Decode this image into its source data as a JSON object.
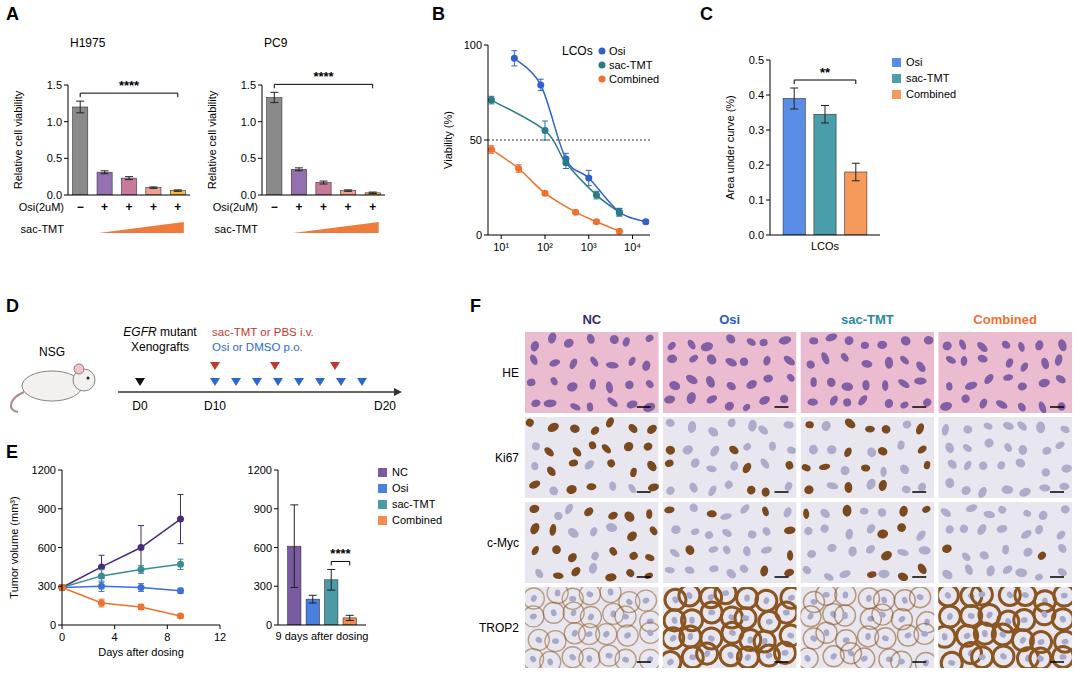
{
  "panel_letters": [
    "A",
    "B",
    "C",
    "D",
    "E",
    "F"
  ],
  "chart_data": [
    {
      "type": "bar",
      "title": "H1975",
      "ylabel": "Relative cell viability",
      "categories": [
        null,
        null,
        null,
        null,
        null
      ],
      "values": [
        1.2,
        0.31,
        0.23,
        0.1,
        0.06
      ],
      "errors": [
        0.08,
        0.02,
        0.02,
        0.01,
        0.01
      ],
      "colors": [
        "#8a8a8a",
        "#9470b0",
        "#c87a9c",
        "#f0a08e",
        "#f5b942"
      ],
      "ylim": [
        0,
        1.5
      ],
      "yticks": [
        {
          "value": 0,
          "label": "0.0"
        },
        {
          "value": 0.5,
          "label": "0.5"
        },
        {
          "value": 1,
          "label": "1.0"
        },
        {
          "value": 1.5,
          "label": "1.5"
        }
      ],
      "annotations": [
        "****"
      ],
      "x_rows": [
        {
          "label": "Osi(2uM)",
          "marks": [
            "−",
            "+",
            "+",
            "+",
            "+"
          ]
        },
        {
          "label": "sac-TMT"
        }
      ]
    },
    {
      "type": "bar",
      "title": "PC9",
      "ylabel": "Relative cell viability",
      "categories": [
        null,
        null,
        null,
        null,
        null
      ],
      "values": [
        1.33,
        0.35,
        0.17,
        0.06,
        0.03
      ],
      "errors": [
        0.07,
        0.02,
        0.02,
        0.01,
        0.01
      ],
      "colors": [
        "#8a8a8a",
        "#9470b0",
        "#c87a9c",
        "#f0a08e",
        "#f5b942"
      ],
      "ylim": [
        0,
        1.5
      ],
      "yticks": [
        {
          "value": 0,
          "label": "0.0"
        },
        {
          "value": 0.5,
          "label": "0.5"
        },
        {
          "value": 1,
          "label": "1.0"
        },
        {
          "value": 1.5,
          "label": "1.5"
        }
      ],
      "annotations": [
        "****"
      ],
      "x_rows": [
        {
          "label": "Osi(2uM)",
          "marks": [
            "−",
            "+",
            "+",
            "+",
            "+"
          ]
        },
        {
          "label": "sac-TMT"
        }
      ]
    },
    {
      "type": "line",
      "title": "LCOs",
      "ylabel": "Viability (%)",
      "log": "x",
      "marker": "circle",
      "xlim": [
        5,
        25000
      ],
      "xticks": [
        {
          "value": 10,
          "label": "10¹"
        },
        {
          "value": 100,
          "label": "10²"
        },
        {
          "value": 1000,
          "label": "10³"
        },
        {
          "value": 10000,
          "label": "10⁴"
        }
      ],
      "ylim": [
        0,
        100
      ],
      "yticks": [
        0,
        50,
        100
      ],
      "reference_line": 50,
      "legend": "top-right",
      "series": [
        {
          "name": "Osi",
          "color": "#3060d0",
          "x": [
            20,
            80,
            300,
            1000,
            5000,
            20000
          ],
          "values": [
            93,
            79,
            40,
            30,
            12,
            7
          ],
          "errors": [
            4,
            3,
            3,
            4,
            2,
            1
          ]
        },
        {
          "name": "sac-TMT",
          "color": "#2a7a8a",
          "x": [
            6,
            100,
            300,
            1500,
            5000
          ],
          "values": [
            71,
            55,
            38,
            21,
            12
          ],
          "errors": [
            2,
            5,
            3,
            2,
            2
          ]
        },
        {
          "name": "Combined",
          "color": "#f07030",
          "x": [
            6,
            25,
            100,
            500,
            1500,
            5000
          ],
          "values": [
            45,
            35,
            22,
            12,
            7,
            2
          ],
          "errors": [
            2,
            2,
            1,
            1,
            1,
            1
          ]
        }
      ]
    },
    {
      "type": "bar",
      "ylabel": "Area under curve (%)",
      "categories": [
        "LCOs"
      ],
      "series": [
        {
          "name": "Osi",
          "color": "#5a8ee6",
          "values": [
            0.39
          ],
          "errors": [
            0.03
          ]
        },
        {
          "name": "sac-TMT",
          "color": "#4a9eaa",
          "values": [
            0.345
          ],
          "errors": [
            0.025
          ]
        },
        {
          "name": "Combined",
          "color": "#f59a5a",
          "values": [
            0.18
          ],
          "errors": [
            0.025
          ]
        }
      ],
      "ylim": [
        0,
        0.5
      ],
      "yticks": [
        {
          "value": 0,
          "label": "0.0"
        },
        {
          "value": 0.1,
          "label": "0.1"
        },
        {
          "value": 0.2,
          "label": "0.2"
        },
        {
          "value": 0.3,
          "label": "0.3"
        },
        {
          "value": 0.4,
          "label": "0.4"
        },
        {
          "value": 0.5,
          "label": "0.5"
        }
      ],
      "legend": "right",
      "annotations": [
        "**"
      ]
    },
    {
      "type": "line",
      "xlabel": "Days after dosing",
      "ylabel": "Tumor volume (mm³)",
      "marker": "circle",
      "x": [
        0,
        3,
        6,
        9
      ],
      "xlim": [
        0,
        12
      ],
      "xticks": [
        0,
        4,
        8,
        12
      ],
      "ylim": [
        0,
        1200
      ],
      "yticks": [
        0,
        300,
        600,
        900,
        1200
      ],
      "series": [
        {
          "name": "NC",
          "color": "#4a2a7a",
          "values": [
            290,
            450,
            600,
            820
          ],
          "errors": [
            20,
            90,
            170,
            190
          ]
        },
        {
          "name": "Osi",
          "color": "#3a70d8",
          "values": [
            290,
            300,
            290,
            265
          ],
          "errors": [
            20,
            40,
            30,
            20
          ]
        },
        {
          "name": "sac-TMT",
          "color": "#3a8a98",
          "values": [
            290,
            380,
            430,
            470
          ],
          "errors": [
            20,
            50,
            30,
            40
          ]
        },
        {
          "name": "Combined",
          "color": "#f07030",
          "values": [
            290,
            170,
            140,
            70
          ],
          "errors": [
            20,
            30,
            20,
            15
          ]
        }
      ]
    },
    {
      "type": "bar",
      "categories": [
        "9 days after dosing"
      ],
      "series": [
        {
          "name": "NC",
          "color": "#7a5aa0",
          "values": [
            610
          ],
          "errors": [
            320
          ]
        },
        {
          "name": "Osi",
          "color": "#4a80e0",
          "values": [
            200
          ],
          "errors": [
            30
          ]
        },
        {
          "name": "sac-TMT",
          "color": "#4a9aa8",
          "values": [
            350
          ],
          "errors": [
            80
          ]
        },
        {
          "name": "Combined",
          "color": "#f58a50",
          "values": [
            55
          ],
          "errors": [
            20
          ]
        }
      ],
      "ylim": [
        0,
        1200
      ],
      "yticks": [
        0,
        300,
        600,
        900,
        1200
      ],
      "legend": "right",
      "annotations": [
        "****"
      ]
    }
  ],
  "schematic": {
    "host": "NSG",
    "model": "EGFR mutant",
    "model_sub": "Xenografts",
    "iv_label": "sac-TMT or PBS i.v.",
    "po_label": "Osi or DMSO p.o.",
    "timeline": [
      "D0",
      "D10",
      "D20"
    ]
  },
  "image_grid": {
    "columns": [
      {
        "label": "NC",
        "color": "#3a2a6a"
      },
      {
        "label": "Osi",
        "color": "#2a5ad0"
      },
      {
        "label": "sac-TMT",
        "color": "#2a8aa0"
      },
      {
        "label": "Combined",
        "color": "#f07030"
      }
    ],
    "rows": [
      "HE",
      "Ki67",
      "c-Myc",
      "TROP2"
    ]
  }
}
